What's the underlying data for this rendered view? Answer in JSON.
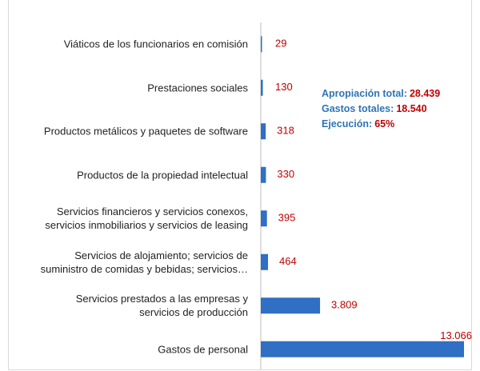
{
  "chart_data": {
    "type": "barh",
    "categories": [
      "Viáticos de los funcionarios en comisión",
      "Prestaciones sociales",
      "Productos metálicos y paquetes de software",
      "Productos de la propiedad intelectual",
      "Servicios financieros y servicios conexos,\nservicios inmobiliarios y servicios de leasing",
      "Servicios de alojamiento; servicios de\nsuministro de comidas y bebidas; servicios…",
      "Servicios prestados a las empresas y\nservicios de producción",
      "Gastos de personal"
    ],
    "values": [
      29,
      130,
      318,
      330,
      395,
      464,
      3809,
      13066
    ],
    "value_labels": [
      "29",
      "130",
      "318",
      "330",
      "395",
      "464",
      "3.809",
      "13.066"
    ],
    "color": "#2f6fc4",
    "label_color": "#c00000",
    "annotations": [
      {
        "label": "Apropiación total:",
        "value": "28.439"
      },
      {
        "label": "Gastos totales:",
        "value": "18.540"
      },
      {
        "label": "Ejecución:",
        "value": "65%"
      }
    ]
  }
}
